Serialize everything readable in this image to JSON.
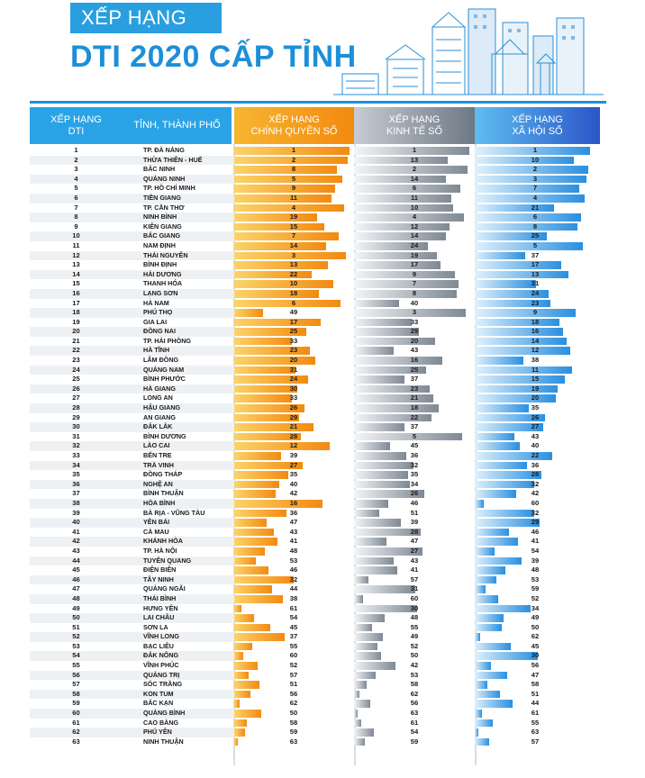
{
  "header": {
    "badge": "XẾP HẠNG",
    "title": "DTI 2020 CẤP TỈNH"
  },
  "colors": {
    "title_blue": "#1d8fd8",
    "header_blue": "#2aa3e6",
    "chinh_quyen_orange": "#f28a10",
    "kinh_te_gray": "#7f8994",
    "xa_hoi_blue": "#2a8fe0"
  },
  "chart_data": {
    "type": "table",
    "columns": {
      "rank": [
        "XẾP HẠNG",
        "DTI"
      ],
      "province": "TỈNH, THÀNH PHỐ",
      "chinh_quyen": [
        "XẾP HẠNG",
        "CHÍNH QUYỀN SỐ"
      ],
      "kinh_te": [
        "XẾP HẠNG",
        "KINH TẾ SỐ"
      ],
      "xa_hoi": [
        "XẾP HẠNG",
        "XÃ HỘI SỐ"
      ]
    },
    "bar_scale_max_rank": 63,
    "rows": [
      {
        "rank": 1,
        "province": "TP. ĐÀ NẴNG",
        "cq": 1,
        "kt": 1,
        "xh": 1
      },
      {
        "rank": 2,
        "province": "THỪA THIÊN - HUẾ",
        "cq": 2,
        "kt": 13,
        "xh": 10
      },
      {
        "rank": 3,
        "province": "BẮC NINH",
        "cq": 8,
        "kt": 2,
        "xh": 2
      },
      {
        "rank": 4,
        "province": "QUẢNG NINH",
        "cq": 5,
        "kt": 14,
        "xh": 3
      },
      {
        "rank": 5,
        "province": "TP. HỒ CHÍ MINH",
        "cq": 9,
        "kt": 6,
        "xh": 7
      },
      {
        "rank": 6,
        "province": "TIỀN GIANG",
        "cq": 11,
        "kt": 11,
        "xh": 4
      },
      {
        "rank": 7,
        "province": "TP. CẦN THƠ",
        "cq": 4,
        "kt": 10,
        "xh": 21
      },
      {
        "rank": 8,
        "province": "NINH BÌNH",
        "cq": 19,
        "kt": 4,
        "xh": 6
      },
      {
        "rank": 9,
        "province": "KIÊN GIANG",
        "cq": 15,
        "kt": 12,
        "xh": 8
      },
      {
        "rank": 10,
        "province": "BẮC GIANG",
        "cq": 7,
        "kt": 14,
        "xh": 25
      },
      {
        "rank": 11,
        "province": "NAM ĐỊNH",
        "cq": 14,
        "kt": 24,
        "xh": 5
      },
      {
        "rank": 12,
        "province": "THÁI NGUYÊN",
        "cq": 3,
        "kt": 19,
        "xh": 37
      },
      {
        "rank": 13,
        "province": "BÌNH ĐỊNH",
        "cq": 13,
        "kt": 17,
        "xh": 17
      },
      {
        "rank": 14,
        "province": "HẢI DƯƠNG",
        "cq": 22,
        "kt": 9,
        "xh": 13
      },
      {
        "rank": 15,
        "province": "THANH HÓA",
        "cq": 10,
        "kt": 7,
        "xh": 31
      },
      {
        "rank": 16,
        "province": "LẠNG SƠN",
        "cq": 18,
        "kt": 8,
        "xh": 24
      },
      {
        "rank": 17,
        "province": "HÀ NAM",
        "cq": 6,
        "kt": 40,
        "xh": 23
      },
      {
        "rank": 18,
        "province": "PHÚ THỌ",
        "cq": 49,
        "kt": 3,
        "xh": 9
      },
      {
        "rank": 19,
        "province": "GIA LAI",
        "cq": 17,
        "kt": 33,
        "xh": 18
      },
      {
        "rank": 20,
        "province": "ĐỒNG NAI",
        "cq": 25,
        "kt": 29,
        "xh": 16
      },
      {
        "rank": 21,
        "province": "TP. HẢI PHÒNG",
        "cq": 33,
        "kt": 20,
        "xh": 14
      },
      {
        "rank": 22,
        "province": "HÀ TĨNH",
        "cq": 23,
        "kt": 43,
        "xh": 12
      },
      {
        "rank": 23,
        "province": "LÂM ĐỒNG",
        "cq": 20,
        "kt": 16,
        "xh": 38
      },
      {
        "rank": 24,
        "province": "QUẢNG NAM",
        "cq": 31,
        "kt": 25,
        "xh": 11
      },
      {
        "rank": 25,
        "province": "BÌNH PHƯỚC",
        "cq": 24,
        "kt": 37,
        "xh": 15
      },
      {
        "rank": 26,
        "province": "HÀ GIANG",
        "cq": 30,
        "kt": 23,
        "xh": 19
      },
      {
        "rank": 27,
        "province": "LONG AN",
        "cq": 33,
        "kt": 21,
        "xh": 20
      },
      {
        "rank": 28,
        "province": "HẬU GIANG",
        "cq": 26,
        "kt": 18,
        "xh": 35
      },
      {
        "rank": 29,
        "province": "AN GIANG",
        "cq": 29,
        "kt": 22,
        "xh": 26
      },
      {
        "rank": 30,
        "province": "ĐẮK LẮK",
        "cq": 21,
        "kt": 37,
        "xh": 27
      },
      {
        "rank": 31,
        "province": "BÌNH DƯƠNG",
        "cq": 28,
        "kt": 5,
        "xh": 43
      },
      {
        "rank": 32,
        "province": "LÀO CAI",
        "cq": 12,
        "kt": 45,
        "xh": 40
      },
      {
        "rank": 33,
        "province": "BẾN TRE",
        "cq": 39,
        "kt": 36,
        "xh": 22
      },
      {
        "rank": 34,
        "province": "TRÀ VINH",
        "cq": 27,
        "kt": 32,
        "xh": 36
      },
      {
        "rank": 35,
        "province": "ĐỒNG THÁP",
        "cq": 35,
        "kt": 35,
        "xh": 28
      },
      {
        "rank": 36,
        "province": "NGHỆ AN",
        "cq": 40,
        "kt": 34,
        "xh": 32
      },
      {
        "rank": 37,
        "province": "BÌNH THUẬN",
        "cq": 42,
        "kt": 26,
        "xh": 42
      },
      {
        "rank": 38,
        "province": "HÒA BÌNH",
        "cq": 16,
        "kt": 46,
        "xh": 60
      },
      {
        "rank": 39,
        "province": "BÀ RỊA - VŨNG TÀU",
        "cq": 36,
        "kt": 51,
        "xh": 32
      },
      {
        "rank": 40,
        "province": "YÊN BÁI",
        "cq": 47,
        "kt": 39,
        "xh": 29
      },
      {
        "rank": 41,
        "province": "CÀ MAU",
        "cq": 43,
        "kt": 28,
        "xh": 46
      },
      {
        "rank": 42,
        "province": "KHÁNH HÒA",
        "cq": 41,
        "kt": 47,
        "xh": 41
      },
      {
        "rank": 43,
        "province": "TP. HÀ NỘI",
        "cq": 48,
        "kt": 27,
        "xh": 54
      },
      {
        "rank": 44,
        "province": "TUYÊN QUANG",
        "cq": 53,
        "kt": 43,
        "xh": 39
      },
      {
        "rank": 45,
        "province": "ĐIỆN BIÊN",
        "cq": 46,
        "kt": 41,
        "xh": 48
      },
      {
        "rank": 46,
        "province": "TÂY NINH",
        "cq": 32,
        "kt": 57,
        "xh": 53
      },
      {
        "rank": 47,
        "province": "QUẢNG NGÃI",
        "cq": 44,
        "kt": 31,
        "xh": 59
      },
      {
        "rank": 48,
        "province": "THÁI BÌNH",
        "cq": 38,
        "kt": 60,
        "xh": 52
      },
      {
        "rank": 49,
        "province": "HƯNG YÊN",
        "cq": 61,
        "kt": 30,
        "xh": 34
      },
      {
        "rank": 50,
        "province": "LAI CHÂU",
        "cq": 54,
        "kt": 48,
        "xh": 49
      },
      {
        "rank": 51,
        "province": "SƠN LA",
        "cq": 45,
        "kt": 55,
        "xh": 50
      },
      {
        "rank": 52,
        "province": "VĨNH LONG",
        "cq": 37,
        "kt": 49,
        "xh": 62
      },
      {
        "rank": 53,
        "province": "BẠC LIÊU",
        "cq": 55,
        "kt": 52,
        "xh": 45
      },
      {
        "rank": 54,
        "province": "ĐẮK NÔNG",
        "cq": 60,
        "kt": 50,
        "xh": 30
      },
      {
        "rank": 55,
        "province": "VĨNH PHÚC",
        "cq": 52,
        "kt": 42,
        "xh": 56
      },
      {
        "rank": 56,
        "province": "QUẢNG TRỊ",
        "cq": 57,
        "kt": 53,
        "xh": 47
      },
      {
        "rank": 57,
        "province": "SÓC TRĂNG",
        "cq": 51,
        "kt": 58,
        "xh": 58
      },
      {
        "rank": 58,
        "province": "KON TUM",
        "cq": 56,
        "kt": 62,
        "xh": 51
      },
      {
        "rank": 59,
        "province": "BẮC KẠN",
        "cq": 62,
        "kt": 56,
        "xh": 44
      },
      {
        "rank": 60,
        "province": "QUẢNG BÌNH",
        "cq": 50,
        "kt": 63,
        "xh": 61
      },
      {
        "rank": 61,
        "province": "CAO BẰNG",
        "cq": 58,
        "kt": 61,
        "xh": 55
      },
      {
        "rank": 62,
        "province": "PHÚ YÊN",
        "cq": 59,
        "kt": 54,
        "xh": 63
      },
      {
        "rank": 63,
        "province": "NINH THUẬN",
        "cq": 63,
        "kt": 59,
        "xh": 57
      }
    ]
  }
}
